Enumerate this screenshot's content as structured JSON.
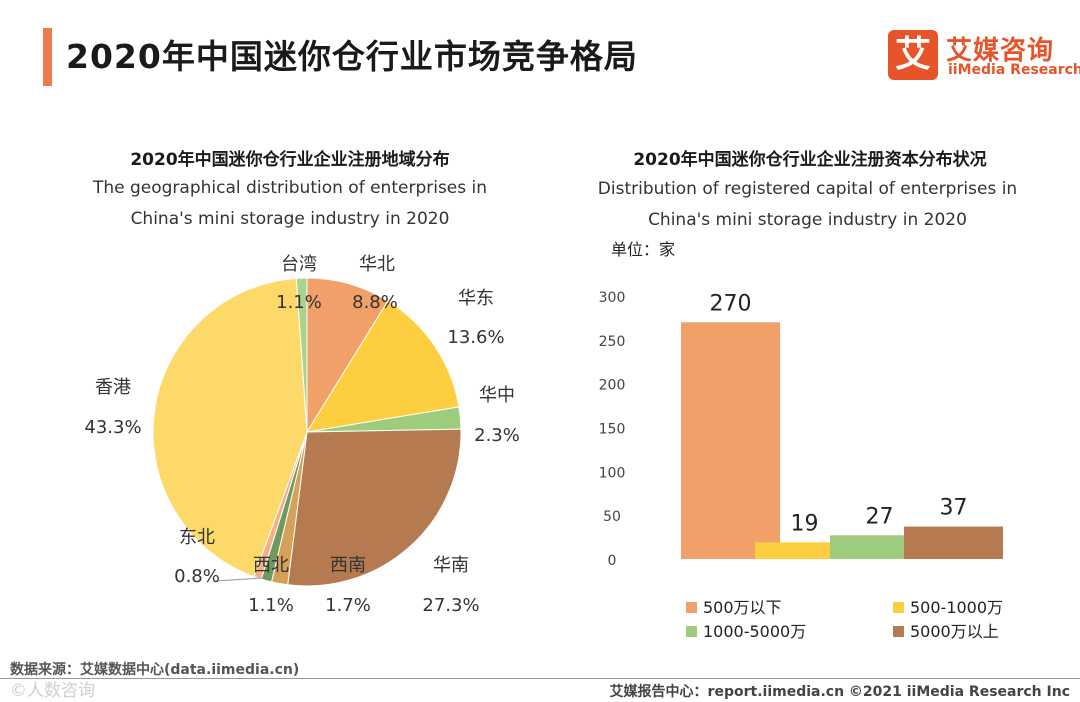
{
  "page": {
    "title": "2020年中国迷你仓行业市场竞争格局",
    "accent_color": "#f07a4a"
  },
  "logo": {
    "mark": "艾",
    "name": "艾媒咨询",
    "sub": "iiMedia Research",
    "color": "#e8542a"
  },
  "chart_data": [
    {
      "type": "pie",
      "title": "2020年中国迷你仓行业企业注册地域分布",
      "subtitle": "The geographical distribution of enterprises in China's mini storage industry in 2020",
      "slices": [
        {
          "label": "华北",
          "value": 8.8,
          "display": "8.8%",
          "color": "#f0a068"
        },
        {
          "label": "华东",
          "value": 13.6,
          "display": "13.6%",
          "color": "#fdcf40"
        },
        {
          "label": "华中",
          "value": 2.3,
          "display": "2.3%",
          "color": "#9ccc7c"
        },
        {
          "label": "华南",
          "value": 27.3,
          "display": "27.3%",
          "color": "#b57a50"
        },
        {
          "label": "西南",
          "value": 1.7,
          "display": "1.7%",
          "color": "#d4a15a"
        },
        {
          "label": "西北",
          "value": 1.1,
          "display": "1.1%",
          "color": "#6f9a5f"
        },
        {
          "label": "东北",
          "value": 0.8,
          "display": "0.8%",
          "color": "#f3b08a"
        },
        {
          "label": "香港",
          "value": 43.3,
          "display": "43.3%",
          "color": "#fdd96a"
        },
        {
          "label": "台湾",
          "value": 1.1,
          "display": "1.1%",
          "color": "#a8d48c"
        }
      ]
    },
    {
      "type": "bar",
      "title": "2020年中国迷你仓行业企业注册资本分布状况",
      "subtitle": "Distribution of registered capital of enterprises in China's mini storage industry in 2020",
      "unit": "单位：家",
      "ylim": [
        0,
        300
      ],
      "yticks": [
        0,
        50,
        100,
        150,
        200,
        250,
        300
      ],
      "series": [
        {
          "name": "500万以下",
          "value": 270,
          "color": "#f0a068"
        },
        {
          "name": "500-1000万",
          "value": 19,
          "color": "#fdcf40"
        },
        {
          "name": "1000-5000万",
          "value": 27,
          "color": "#9ccc7c"
        },
        {
          "name": "5000万以上",
          "value": 37,
          "color": "#b57a50"
        }
      ]
    }
  ],
  "source": "数据来源：艾媒数据中心(data.iimedia.cn)",
  "watermark": "©人数咨询",
  "footer": "艾媒报告中心：report.iimedia.cn  ©2021  iiMedia Research  Inc"
}
